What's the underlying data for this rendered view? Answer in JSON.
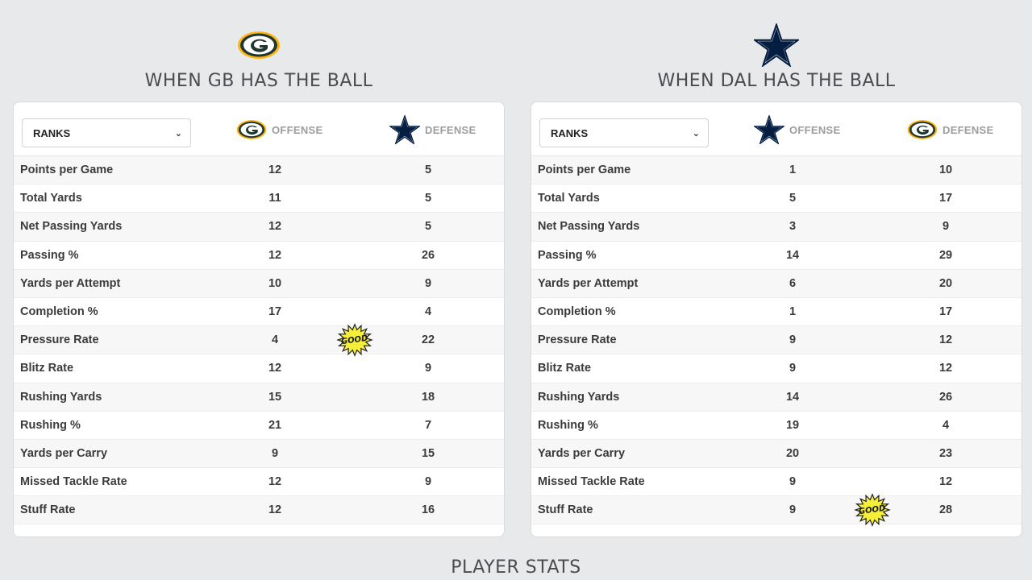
{
  "left": {
    "title": "WHEN GB HAS THE BALL",
    "logo": "packers-logo-icon",
    "select_value": "RANKS",
    "col1": {
      "label": "OFFENSE",
      "icon": "packers-logo-icon"
    },
    "col2": {
      "label": "DEFENSE",
      "icon": "cowboys-star-icon"
    },
    "rows": [
      {
        "label": "Points per Game",
        "v1": "12",
        "v2": "5"
      },
      {
        "label": "Total Yards",
        "v1": "11",
        "v2": "5"
      },
      {
        "label": "Net Passing Yards",
        "v1": "12",
        "v2": "5"
      },
      {
        "label": "Passing %",
        "v1": "12",
        "v2": "26"
      },
      {
        "label": "Yards per Attempt",
        "v1": "10",
        "v2": "9"
      },
      {
        "label": "Completion %",
        "v1": "17",
        "v2": "4"
      },
      {
        "label": "Pressure Rate",
        "v1": "4",
        "v2": "22"
      },
      {
        "label": "Blitz Rate",
        "v1": "12",
        "v2": "9"
      },
      {
        "label": "Rushing Yards",
        "v1": "15",
        "v2": "18"
      },
      {
        "label": "Rushing %",
        "v1": "21",
        "v2": "7"
      },
      {
        "label": "Yards per Carry",
        "v1": "9",
        "v2": "15"
      },
      {
        "label": "Missed Tackle Rate",
        "v1": "12",
        "v2": "9"
      },
      {
        "label": "Stuff Rate",
        "v1": "12",
        "v2": "16"
      }
    ],
    "badge": {
      "text": "GOOD",
      "row_label": "Pressure Rate"
    }
  },
  "right": {
    "title": "WHEN DAL HAS THE BALL",
    "logo": "cowboys-star-icon",
    "select_value": "RANKS",
    "col1": {
      "label": "OFFENSE",
      "icon": "cowboys-star-icon"
    },
    "col2": {
      "label": "DEFENSE",
      "icon": "packers-logo-icon"
    },
    "rows": [
      {
        "label": "Points per Game",
        "v1": "1",
        "v2": "10"
      },
      {
        "label": "Total Yards",
        "v1": "5",
        "v2": "17"
      },
      {
        "label": "Net Passing Yards",
        "v1": "3",
        "v2": "9"
      },
      {
        "label": "Passing %",
        "v1": "14",
        "v2": "29"
      },
      {
        "label": "Yards per Attempt",
        "v1": "6",
        "v2": "20"
      },
      {
        "label": "Completion %",
        "v1": "1",
        "v2": "17"
      },
      {
        "label": "Pressure Rate",
        "v1": "9",
        "v2": "12"
      },
      {
        "label": "Blitz Rate",
        "v1": "9",
        "v2": "12"
      },
      {
        "label": "Rushing Yards",
        "v1": "14",
        "v2": "26"
      },
      {
        "label": "Rushing %",
        "v1": "19",
        "v2": "4"
      },
      {
        "label": "Yards per Carry",
        "v1": "20",
        "v2": "23"
      },
      {
        "label": "Missed Tackle Rate",
        "v1": "9",
        "v2": "12"
      },
      {
        "label": "Stuff Rate",
        "v1": "9",
        "v2": "28"
      }
    ],
    "badge": {
      "text": "GOOD",
      "row_label": "Stuff Rate"
    }
  },
  "bottom_title": "PLAYER STATS",
  "colors": {
    "packers_green": "#203731",
    "packers_gold": "#FFB612",
    "cowboys_navy": "#041E42",
    "badge_yellow": "#f5ef3a"
  }
}
